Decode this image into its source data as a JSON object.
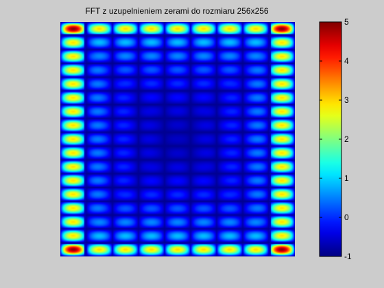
{
  "chart_data": {
    "type": "heatmap",
    "title": "FFT z uzupelnieniem zerami do rozmiaru 256x256",
    "xlabel": "",
    "ylabel": "",
    "grid_size": [
      256,
      256
    ],
    "value_range": [
      -1,
      5
    ],
    "colormap": "jet",
    "colorbar": {
      "position": "right",
      "ticks": [
        5,
        4,
        3,
        2,
        1,
        0,
        -1
      ],
      "tick_labels": [
        "5",
        "4",
        "3",
        "2",
        "1",
        "0",
        "-1"
      ]
    },
    "pattern": {
      "columns": 9,
      "rows": 17,
      "cell_peak_value": 1.4,
      "center_min_value": -0.6,
      "corner_peak_value": 4.9,
      "edge_peak_value": 3.0,
      "gap_value": -0.9
    },
    "grid": false,
    "axes_visible": false
  }
}
